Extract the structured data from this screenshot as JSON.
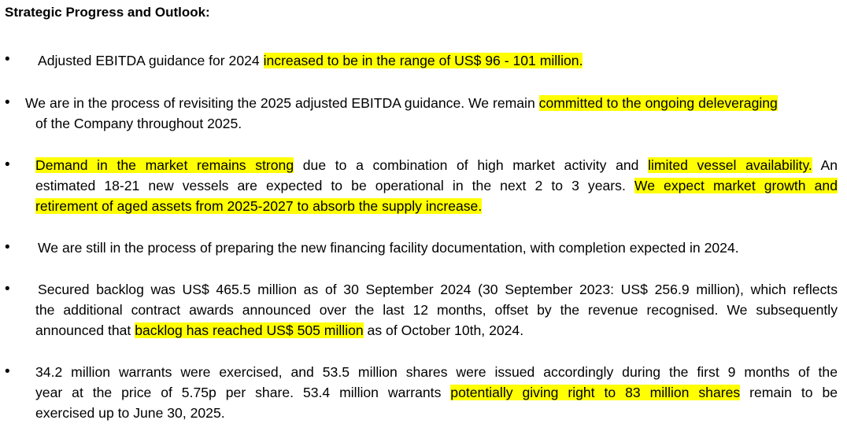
{
  "heading": "Strategic Progress and Outlook:",
  "bullet_symbol": "•",
  "bullets": [
    {
      "line1_a": "Adjusted EBITDA guidance for 2024 ",
      "line1_hl": "increased to be in the range of US$ 96 - 101 million."
    },
    {
      "line1_a": "We are in the process of revisiting the 2025 adjusted EBITDA guidance. We remain ",
      "line1_hl": "committed to the ongoing deleveraging",
      "line2_a": "of the Company throughout 2025."
    },
    {
      "line1_hl1": "Demand in the market remains strong",
      "line1_b": " due to a combination of high market activity and ",
      "line1_hl2": "limited vessel availability.",
      "line1_c": " An",
      "line2_a": "estimated 18-21 new vessels are expected to be operational in the next 2 to 3 years. ",
      "line2_hl": "We expect market growth and",
      "line3_hl": "retirement of aged assets from 2025-2027 to absorb the supply increase."
    },
    {
      "line1_a": "We are still in the process of preparing the new financing facility documentation, with completion expected in 2024."
    },
    {
      "line1_a": "Secured backlog was US$ 465.5 million as of 30 September 2024 (30 September 2023: US$ 256.9 million), which reflects",
      "line2_a": "the additional contract awards announced over the last 12 months, offset by the revenue recognised. We subsequently",
      "line3_a": "announced that ",
      "line3_hl": "backlog has reached US$ 505 million",
      "line3_b": " as of October 10th, 2024."
    },
    {
      "line1_a": "34.2 million warrants were exercised, and 53.5 million shares were issued accordingly during the first 9 months of the",
      "line2_a": "year at the price of 5.75p per share. 53.4 million warrants ",
      "line2_hl": "potentially giving right to 83 million shares",
      "line2_b": " remain to be",
      "line3_a": "exercised up to June 30, 2025."
    }
  ]
}
